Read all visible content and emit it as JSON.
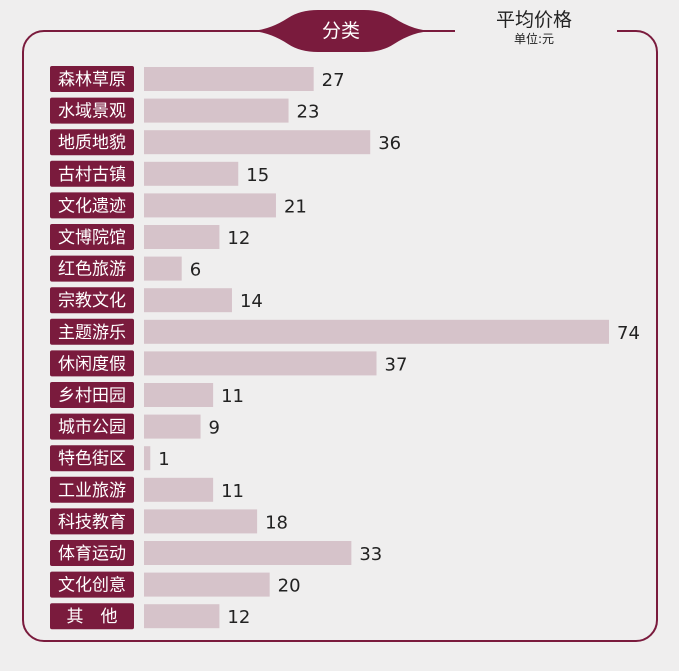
{
  "header": {
    "category_title": "分类",
    "value_title": "平均价格",
    "unit": "单位:元"
  },
  "colors": {
    "accent": "#7a1b3d",
    "bar": "#d6c3ca",
    "background": "#efeeee"
  },
  "chart_data": {
    "type": "bar",
    "orientation": "horizontal",
    "title": "",
    "xlabel": "平均价格",
    "ylabel": "分类",
    "xlim": [
      0,
      74
    ],
    "grid": false,
    "categories": [
      "森林草原",
      "水域景观",
      "地质地貌",
      "古村古镇",
      "文化遗迹",
      "文博院馆",
      "红色旅游",
      "宗教文化",
      "主题游乐",
      "休闲度假",
      "乡村田园",
      "城市公园",
      "特色街区",
      "工业旅游",
      "科技教育",
      "体育运动",
      "文化创意",
      "其　他"
    ],
    "values": [
      27,
      23,
      36,
      15,
      21,
      12,
      6,
      14,
      74,
      37,
      11,
      9,
      1,
      11,
      18,
      33,
      20,
      12
    ]
  }
}
